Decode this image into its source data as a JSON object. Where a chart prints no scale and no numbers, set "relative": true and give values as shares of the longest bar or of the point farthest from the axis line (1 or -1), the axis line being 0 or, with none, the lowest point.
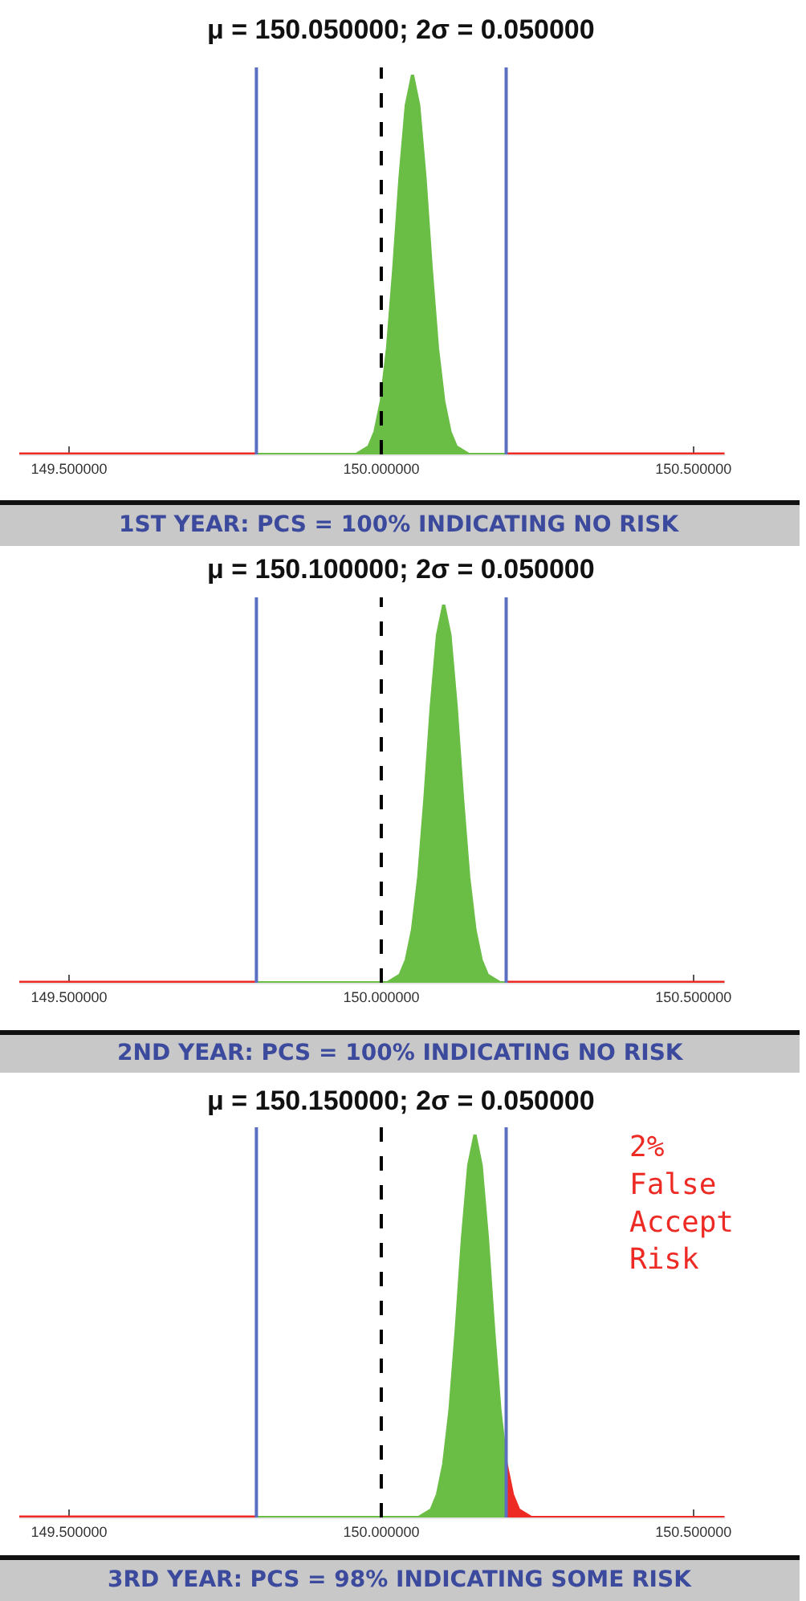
{
  "chart_data": [
    {
      "type": "area",
      "title": "μ = 150.050000; 2σ = 0.050000",
      "relative": true,
      "xlim": [
        149.42,
        150.55
      ],
      "xticks": [
        {
          "value": 149.5,
          "label": "149.500000"
        },
        {
          "value": 150.0,
          "label": "150.000000"
        },
        {
          "value": 150.5,
          "label": "150.500000"
        }
      ],
      "series": [
        {
          "color": "#6abd45",
          "x": [
            149.8,
            149.95,
            149.96,
            149.97,
            149.98,
            149.99,
            150.0,
            150.01,
            150.02,
            150.03,
            150.04,
            150.05,
            150.06,
            150.07,
            150.08,
            150.09,
            150.1,
            150.11,
            150.12,
            150.13,
            150.14,
            150.2
          ],
          "values": [
            0,
            0,
            0,
            0.01,
            0.02,
            0.06,
            0.14,
            0.28,
            0.49,
            0.73,
            0.92,
            1,
            0.92,
            0.73,
            0.49,
            0.28,
            0.14,
            0.06,
            0.02,
            0.01,
            0,
            0
          ]
        },
        {
          "type": "line",
          "color": "#ee2a24",
          "x": [
            149.42,
            149.8
          ],
          "values": [
            0,
            0
          ]
        },
        {
          "type": "line",
          "color": "#ee2a24",
          "x": [
            150.2,
            150.55
          ],
          "values": [
            0,
            0
          ]
        }
      ],
      "ref_lines": [
        {
          "axis": "x",
          "value": 149.8,
          "color": "#5b6fc0",
          "line_style": "solid"
        },
        {
          "axis": "x",
          "value": 150.0,
          "color": "#000000",
          "line_style": "dashed"
        },
        {
          "axis": "x",
          "value": 150.2,
          "color": "#5b6fc0",
          "line_style": "solid"
        }
      ],
      "annotations": [
        "1ST YEAR: PCS = 100% INDICATING NO RISK"
      ]
    },
    {
      "type": "area",
      "title": "μ = 150.100000; 2σ = 0.050000",
      "relative": true,
      "xlim": [
        149.42,
        150.55
      ],
      "xticks": [
        {
          "value": 149.5,
          "label": "149.500000"
        },
        {
          "value": 150.0,
          "label": "150.000000"
        },
        {
          "value": 150.5,
          "label": "150.500000"
        }
      ],
      "series": [
        {
          "color": "#6abd45",
          "x": [
            149.8,
            150.0,
            150.01,
            150.02,
            150.03,
            150.04,
            150.05,
            150.06,
            150.07,
            150.08,
            150.09,
            150.1,
            150.11,
            150.12,
            150.13,
            150.14,
            150.15,
            150.16,
            150.17,
            150.18,
            150.19,
            150.2
          ],
          "values": [
            0,
            0,
            0,
            0.01,
            0.02,
            0.06,
            0.14,
            0.28,
            0.49,
            0.73,
            0.92,
            1,
            0.92,
            0.73,
            0.49,
            0.28,
            0.14,
            0.06,
            0.02,
            0.01,
            0,
            0
          ]
        },
        {
          "type": "line",
          "color": "#ee2a24",
          "x": [
            149.42,
            149.8
          ],
          "values": [
            0,
            0
          ]
        },
        {
          "type": "line",
          "color": "#ee2a24",
          "x": [
            150.2,
            150.55
          ],
          "values": [
            0,
            0
          ]
        }
      ],
      "ref_lines": [
        {
          "axis": "x",
          "value": 149.8,
          "color": "#5b6fc0",
          "line_style": "solid"
        },
        {
          "axis": "x",
          "value": 150.0,
          "color": "#000000",
          "line_style": "dashed"
        },
        {
          "axis": "x",
          "value": 150.2,
          "color": "#5b6fc0",
          "line_style": "solid"
        }
      ],
      "annotations": [
        "2ND YEAR: PCS = 100% INDICATING NO RISK"
      ]
    },
    {
      "type": "area",
      "title": "μ = 150.150000; 2σ = 0.050000",
      "relative": true,
      "xlim": [
        149.42,
        150.55
      ],
      "xticks": [
        {
          "value": 149.5,
          "label": "149.500000"
        },
        {
          "value": 150.0,
          "label": "150.000000"
        },
        {
          "value": 150.5,
          "label": "150.500000"
        }
      ],
      "series": [
        {
          "color": "#6abd45",
          "x": [
            149.8,
            150.05,
            150.06,
            150.07,
            150.08,
            150.09,
            150.1,
            150.11,
            150.12,
            150.13,
            150.14,
            150.15,
            150.16,
            150.17,
            150.18,
            150.19,
            150.2
          ],
          "values": [
            0,
            0,
            0,
            0.01,
            0.02,
            0.06,
            0.14,
            0.28,
            0.49,
            0.73,
            0.92,
            1,
            0.92,
            0.73,
            0.49,
            0.28,
            0.14
          ]
        },
        {
          "type": "line",
          "color": "#ee2a24",
          "x": [
            149.42,
            149.8
          ],
          "values": [
            0,
            0
          ]
        },
        {
          "color": "#ee2a24",
          "x": [
            150.2,
            150.21,
            150.22,
            150.23,
            150.24,
            150.55
          ],
          "values": [
            0.14,
            0.06,
            0.02,
            0.01,
            0,
            0
          ]
        }
      ],
      "ref_lines": [
        {
          "axis": "x",
          "value": 149.8,
          "color": "#5b6fc0",
          "line_style": "solid"
        },
        {
          "axis": "x",
          "value": 150.0,
          "color": "#000000",
          "line_style": "dashed"
        },
        {
          "axis": "x",
          "value": 150.2,
          "color": "#5b6fc0",
          "line_style": "solid"
        }
      ],
      "annotations": [
        "2%\nFalse\nAccept\nRisk",
        "3RD YEAR: PCS = 98% INDICATING SOME RISK"
      ]
    }
  ]
}
